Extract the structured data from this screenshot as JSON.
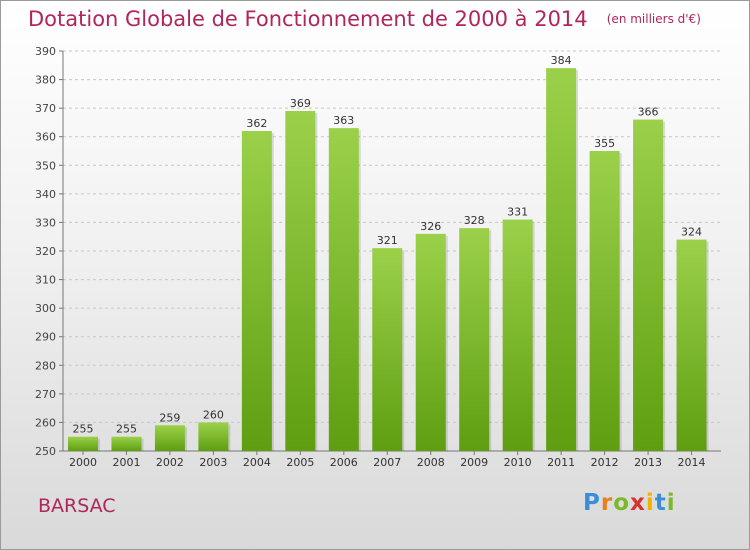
{
  "chart_data": {
    "type": "bar",
    "title": "Dotation Globale de Fonctionnement de 2000 à 2014",
    "subtitle": "(en milliers d'€)",
    "xlabel": "",
    "ylabel": "",
    "categories": [
      "2000",
      "2001",
      "2002",
      "2003",
      "2004",
      "2005",
      "2006",
      "2007",
      "2008",
      "2009",
      "2010",
      "2011",
      "2012",
      "2013",
      "2014"
    ],
    "values": [
      255,
      255,
      259,
      260,
      362,
      369,
      363,
      321,
      326,
      328,
      331,
      384,
      355,
      366,
      324
    ],
    "data_labels": [
      "255",
      "255",
      "259",
      "260",
      "362",
      "369",
      "363",
      "321",
      "326",
      "328",
      "331",
      "384",
      "355",
      "366",
      "324"
    ],
    "ylim": [
      250,
      390
    ],
    "yticks": [
      "250",
      "260",
      "270",
      "280",
      "290",
      "300",
      "310",
      "320",
      "330",
      "340",
      "350",
      "360",
      "370",
      "380",
      "390"
    ],
    "grid": true,
    "bar_color_top": "#9bd14a",
    "bar_color_bottom": "#5e9e10"
  },
  "commune": "BARSAC",
  "logo": {
    "letters": [
      "P",
      "r",
      "o",
      "x",
      "i",
      "t",
      "i"
    ],
    "colors": [
      "#3a8fd6",
      "#e87e1c",
      "#7bb82a",
      "#d6332c",
      "#f0b400",
      "#3a8fd6",
      "#7bb82a"
    ]
  }
}
